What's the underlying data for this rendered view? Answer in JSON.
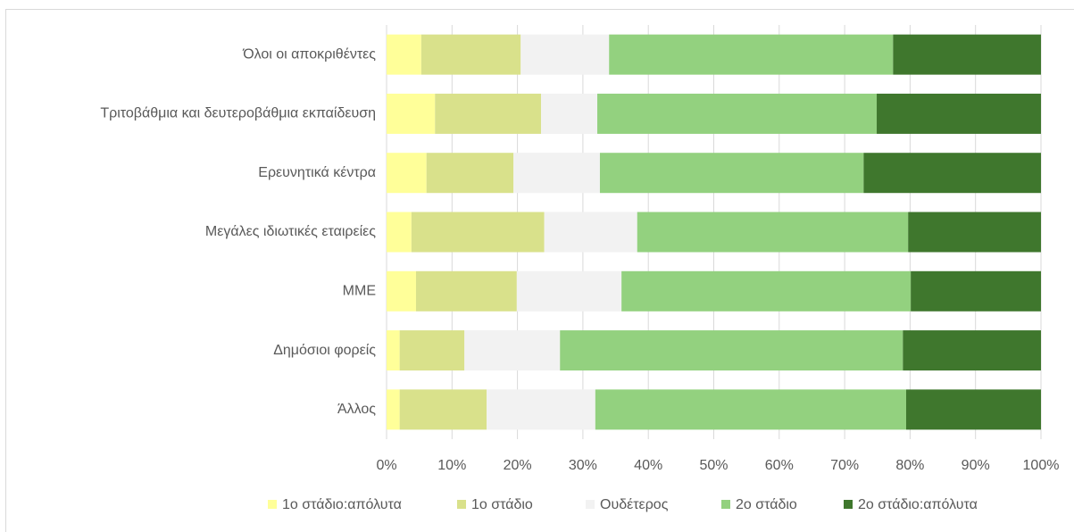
{
  "chart_data": {
    "type": "stacked_bar_horizontal",
    "categories": [
      "Όλοι οι αποκριθέντες",
      "Τριτοβάθμια και δευτεροβάθμια εκπαίδευση",
      "Ερευνητικά κέντρα",
      "Μεγάλες ιδιωτικές εταιρείες",
      "ΜΜΕ",
      "Δημόσιοι φορείς",
      "Άλλος"
    ],
    "series": [
      {
        "name": "1ο στάδιο:απόλυτα",
        "color": "#ffff99",
        "values": [
          5.3,
          7.4,
          6.1,
          3.8,
          4.5,
          2.0,
          2.0
        ]
      },
      {
        "name": "1ο στάδιο",
        "color": "#d9e18b",
        "values": [
          15.2,
          16.2,
          13.3,
          20.3,
          15.4,
          9.9,
          13.3
        ]
      },
      {
        "name": "Ουδέτερος",
        "color": "#f2f2f2",
        "values": [
          13.5,
          8.6,
          13.2,
          14.2,
          16.0,
          14.6,
          16.6
        ]
      },
      {
        "name": "2ο στάδιο",
        "color": "#93d17f",
        "values": [
          43.4,
          42.7,
          40.3,
          41.4,
          44.2,
          52.4,
          47.5
        ]
      },
      {
        "name": "2ο στάδιο:απόλυτα",
        "color": "#3f772d",
        "values": [
          22.6,
          25.1,
          27.1,
          20.3,
          19.9,
          21.1,
          20.6
        ]
      }
    ],
    "xlim": [
      0,
      100
    ],
    "xticks": [
      {
        "value": 0,
        "label": "0%"
      },
      {
        "value": 10,
        "label": "10%"
      },
      {
        "value": 20,
        "label": "20%"
      },
      {
        "value": 30,
        "label": "30%"
      },
      {
        "value": 40,
        "label": "40%"
      },
      {
        "value": 50,
        "label": "50%"
      },
      {
        "value": 60,
        "label": "60%"
      },
      {
        "value": 70,
        "label": "70%"
      },
      {
        "value": 80,
        "label": "80%"
      },
      {
        "value": 90,
        "label": "90%"
      },
      {
        "value": 100,
        "label": "100%"
      }
    ],
    "grid": true,
    "legend": "bottom"
  }
}
